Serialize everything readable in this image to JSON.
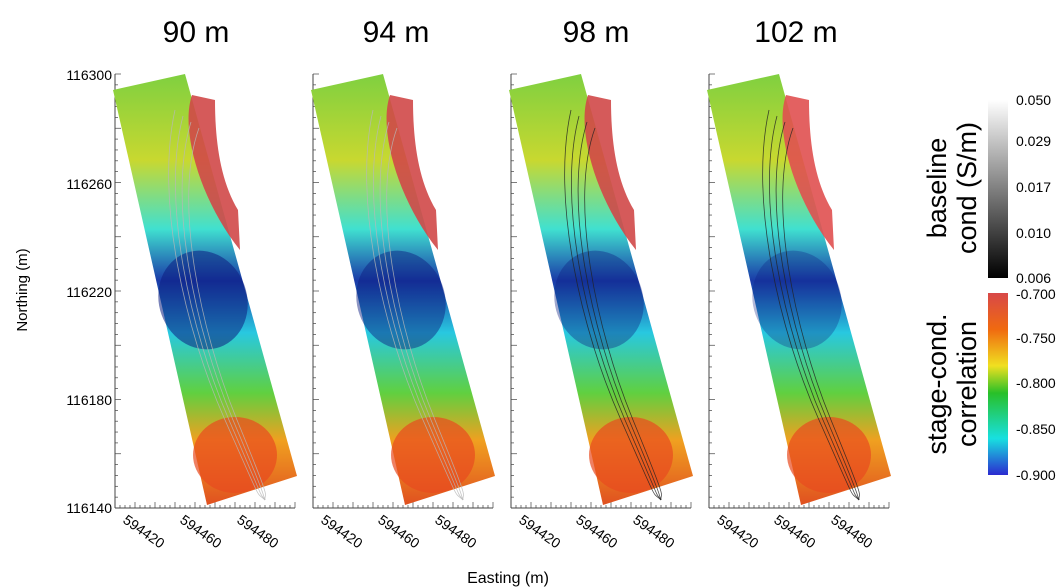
{
  "chart_data": {
    "type": "heatmap",
    "panels": [
      {
        "title": "90 m"
      },
      {
        "title": "94 m"
      },
      {
        "title": "98 m"
      },
      {
        "title": "102 m"
      }
    ],
    "xlabel": "Easting (m)",
    "ylabel": "Northing (m)",
    "x_ticks": [
      "594420",
      "594460",
      "594480"
    ],
    "y_ticks": [
      "116300",
      "116260",
      "116220",
      "116180",
      "116140"
    ],
    "ylim": [
      116140,
      116300
    ],
    "colorbars": [
      {
        "label_lines": [
          "baseline",
          "cond (S/m)"
        ],
        "ticks": [
          "0.050",
          "0.029",
          "0.017",
          "0.010",
          "0.006"
        ],
        "range": [
          0.006,
          0.05
        ],
        "scale": "log",
        "colormap": "grayscale"
      },
      {
        "label_lines": [
          "stage-cond.",
          "correlation"
        ],
        "ticks": [
          "-0.700",
          "-0.750",
          "-0.800",
          "-0.850",
          "-0.900"
        ],
        "range": [
          -0.9,
          -0.7
        ],
        "colormap": "jet",
        "colors": [
          "#2b2bd0",
          "#18e0e0",
          "#28c028",
          "#f0e020",
          "#f06a10",
          "#d84848"
        ]
      }
    ]
  }
}
